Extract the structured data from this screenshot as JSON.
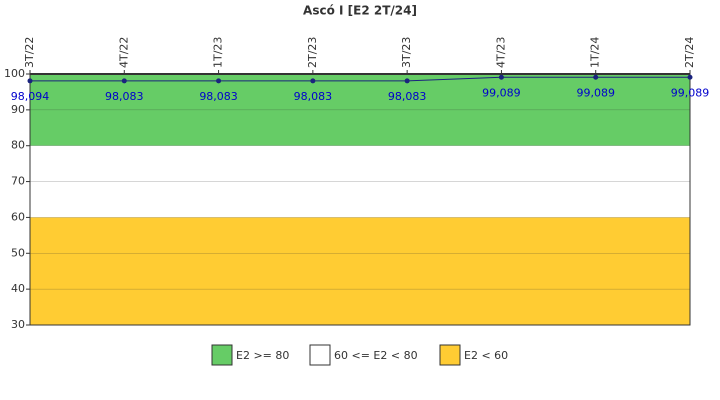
{
  "chart_data": {
    "type": "line",
    "title": "Ascó I [E2 2T/24]",
    "categories": [
      "3T/22",
      "4T/22",
      "1T/23",
      "2T/23",
      "3T/23",
      "4T/23",
      "1T/24",
      "2T/24"
    ],
    "series": [
      {
        "name": "E2",
        "color": "#1a237e",
        "values": [
          98.094,
          98.083,
          98.083,
          98.083,
          98.083,
          99.089,
          99.089,
          99.089
        ],
        "value_labels": [
          "98,094",
          "98,083",
          "98,083",
          "98,083",
          "98,083",
          "99,089",
          "99,089",
          "99,089"
        ]
      }
    ],
    "bands": [
      {
        "name": "E2 >= 80",
        "color": "#66cc66",
        "from": 80,
        "to": 100
      },
      {
        "name": "60 <= E2 < 80",
        "color": "#ffffff",
        "from": 60,
        "to": 80
      },
      {
        "name": "E2 < 60",
        "color": "#ffcc33",
        "from": 30,
        "to": 60
      }
    ],
    "ylim": [
      30,
      100
    ],
    "yticks": [
      30,
      40,
      50,
      60,
      70,
      80,
      90,
      100
    ]
  }
}
